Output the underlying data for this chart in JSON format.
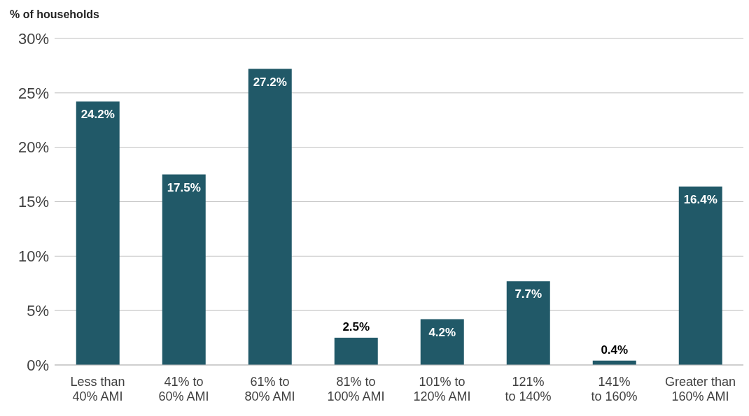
{
  "chart_data": {
    "type": "bar",
    "ylabel": "% of households",
    "categories": [
      "Less than 40% AMI",
      "41% to 60% AMI",
      "61% to 80% AMI",
      "81% to 100% AMI",
      "101% to 120% AMI",
      "121% to 140%",
      "141% to 160%",
      "Greater than 160% AMI"
    ],
    "values": [
      24.2,
      17.5,
      27.2,
      2.5,
      4.2,
      7.7,
      0.4,
      16.4
    ],
    "value_labels": [
      "24.2%",
      "17.5%",
      "27.2%",
      "2.5%",
      "4.2%",
      "7.7%",
      "0.4%",
      "16.4%"
    ],
    "color": "#215968",
    "ylim": [
      0,
      30
    ],
    "yticks": [
      {
        "value": 0,
        "label": "0%"
      },
      {
        "value": 5,
        "label": "5%"
      },
      {
        "value": 10,
        "label": "10%"
      },
      {
        "value": 15,
        "label": "15%"
      },
      {
        "value": 20,
        "label": "20%"
      },
      {
        "value": 25,
        "label": "25%"
      },
      {
        "value": 30,
        "label": "30%"
      }
    ],
    "grid": "y",
    "legend": false
  }
}
